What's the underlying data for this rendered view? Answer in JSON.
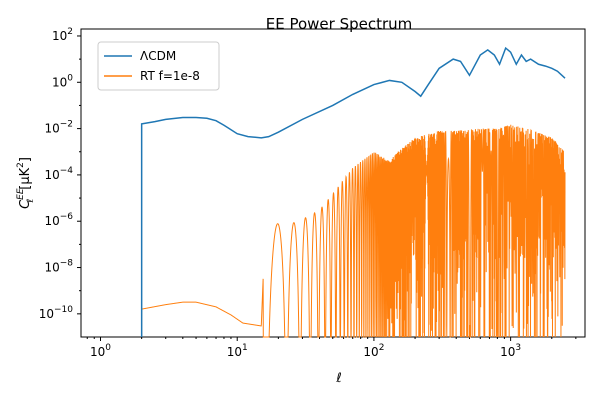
{
  "chart_data": {
    "type": "line",
    "title": "EE Power Spectrum",
    "xlabel": "ℓ",
    "ylabel_main": "C",
    "ylabel_sub": "ℓ",
    "ylabel_sup": "EE",
    "ylabel_unit": "[μK",
    "ylabel_unit_sup": "2",
    "ylabel_close": "]",
    "xscale": "log",
    "yscale": "log",
    "xlim": [
      0.72,
      3500
    ],
    "ylim": [
      1e-11,
      200
    ],
    "legend_placement": "top-left",
    "x_ticks": [
      {
        "value": 1,
        "base": "10",
        "exp": "0"
      },
      {
        "value": 10,
        "base": "10",
        "exp": "1"
      },
      {
        "value": 100,
        "base": "10",
        "exp": "2"
      },
      {
        "value": 1000,
        "base": "10",
        "exp": "3"
      }
    ],
    "y_ticks": [
      {
        "value": 1e-10,
        "base": "10",
        "exp": "−10"
      },
      {
        "value": 1e-08,
        "base": "10",
        "exp": "−8"
      },
      {
        "value": 1e-06,
        "base": "10",
        "exp": "−6"
      },
      {
        "value": 0.0001,
        "base": "10",
        "exp": "−4"
      },
      {
        "value": 0.01,
        "base": "10",
        "exp": "−2"
      },
      {
        "value": 1,
        "base": "10",
        "exp": "0"
      },
      {
        "value": 100,
        "base": "10",
        "exp": "2"
      }
    ],
    "series": [
      {
        "name": "ΛCDM",
        "color": "#1f77b4",
        "points": [
          [
            2,
            1e-11
          ],
          [
            2,
            0.016
          ],
          [
            2.5,
            0.02
          ],
          [
            3,
            0.025
          ],
          [
            4,
            0.03
          ],
          [
            5,
            0.03
          ],
          [
            6,
            0.028
          ],
          [
            7,
            0.022
          ],
          [
            8,
            0.014
          ],
          [
            10,
            0.006
          ],
          [
            12,
            0.0045
          ],
          [
            15,
            0.004
          ],
          [
            17,
            0.0045
          ],
          [
            20,
            0.007
          ],
          [
            30,
            0.025
          ],
          [
            50,
            0.1
          ],
          [
            70,
            0.3
          ],
          [
            100,
            0.8
          ],
          [
            130,
            1.2
          ],
          [
            160,
            1.0
          ],
          [
            200,
            0.4
          ],
          [
            220,
            0.25
          ],
          [
            250,
            0.8
          ],
          [
            300,
            4
          ],
          [
            380,
            10
          ],
          [
            430,
            8
          ],
          [
            500,
            2
          ],
          [
            600,
            15
          ],
          [
            680,
            25
          ],
          [
            760,
            15
          ],
          [
            830,
            6
          ],
          [
            920,
            30
          ],
          [
            1000,
            20
          ],
          [
            1100,
            6
          ],
          [
            1200,
            15
          ],
          [
            1300,
            8
          ],
          [
            1400,
            10
          ],
          [
            1600,
            6
          ],
          [
            1800,
            5
          ],
          [
            2000,
            4
          ],
          [
            2200,
            3
          ],
          [
            2500,
            1.5
          ]
        ]
      },
      {
        "name": "RT f=1e-8",
        "color": "#ff7f0e",
        "envelope": [
          [
            2,
            1.6e-10
          ],
          [
            3,
            2.5e-10
          ],
          [
            4,
            3.2e-10
          ],
          [
            5,
            3.2e-10
          ],
          [
            7,
            2e-10
          ],
          [
            9,
            9e-11
          ],
          [
            11,
            4e-11
          ],
          [
            15,
            3e-11
          ],
          [
            16,
            5e-07
          ],
          [
            20,
            8e-07
          ],
          [
            25,
            8e-07
          ],
          [
            30,
            1.2e-06
          ],
          [
            40,
            3e-06
          ],
          [
            50,
            1.5e-05
          ],
          [
            70,
            0.0002
          ],
          [
            100,
            0.001
          ],
          [
            130,
            0.0004
          ],
          [
            150,
            0.001
          ],
          [
            200,
            0.004
          ],
          [
            300,
            0.008
          ],
          [
            400,
            0.008
          ],
          [
            600,
            0.01
          ],
          [
            800,
            0.01
          ],
          [
            1000,
            0.015
          ],
          [
            1500,
            0.008
          ],
          [
            2000,
            0.004
          ],
          [
            2500,
            0.001
          ]
        ]
      }
    ]
  }
}
